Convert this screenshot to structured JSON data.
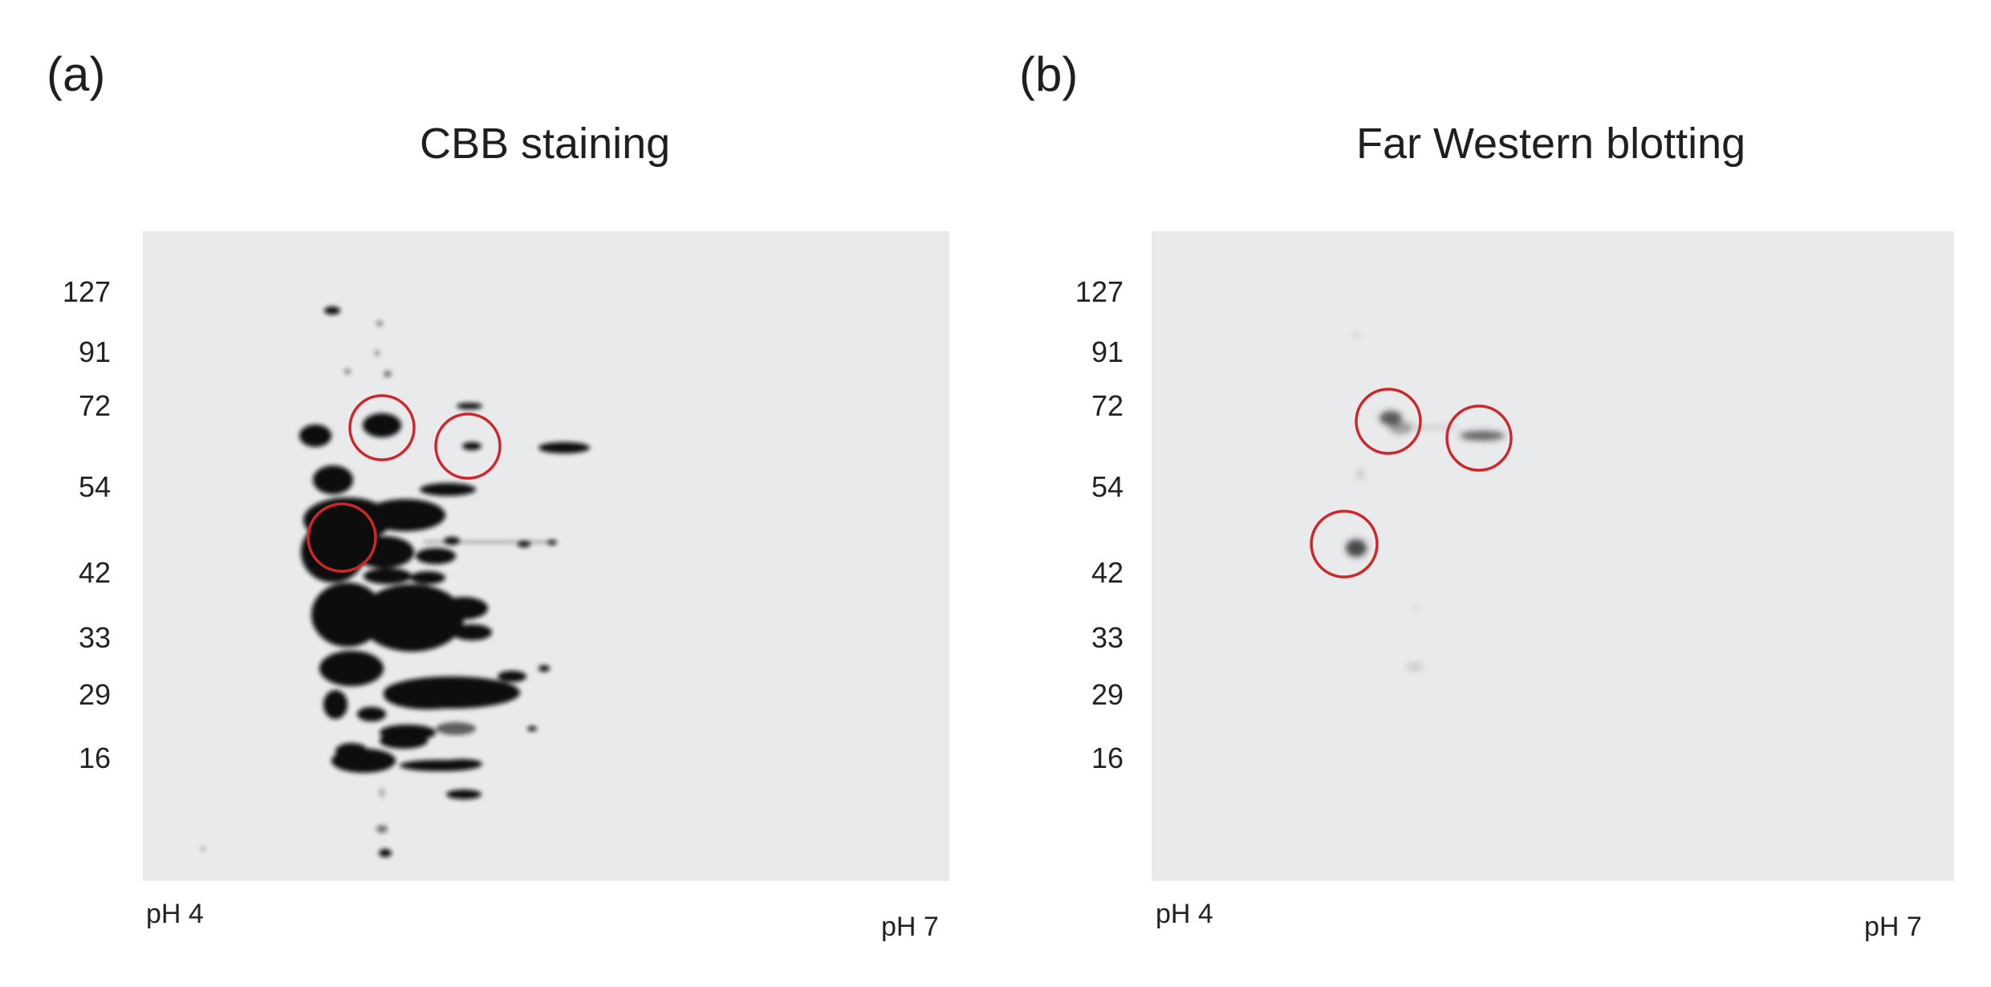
{
  "panels": [
    {
      "letter": "(a)",
      "title": "CBB staining",
      "mw_markers": [
        "127",
        "91",
        "72",
        "54",
        "42",
        "33",
        "29",
        "16"
      ],
      "ph_left": "pH 4",
      "ph_right": "pH 7"
    },
    {
      "letter": "(b)",
      "title": "Far Western blotting",
      "mw_markers": [
        "127",
        "91",
        "72",
        "54",
        "42",
        "33",
        "29",
        "16"
      ],
      "ph_left": "pH 4",
      "ph_right": "pH 7"
    }
  ],
  "colors": {
    "gel_background": "#e9eaeb",
    "spot": "#0a0a0a",
    "highlight_circle": "#d0262b"
  }
}
